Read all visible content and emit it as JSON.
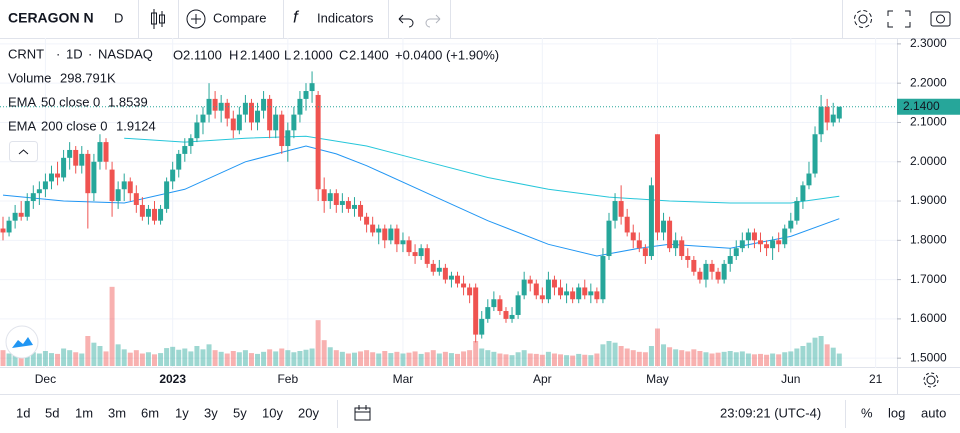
{
  "toolbar": {
    "symbol": "CERAGON N",
    "interval": "D",
    "compare": "Compare",
    "indicators": "Indicators"
  },
  "chart_data": {
    "type": "candlestick",
    "legend": {
      "symbol": "CRNT",
      "sep1": "·",
      "interval": "1D",
      "sep2": "·",
      "exchange": "NASDAQ",
      "o_label": "O",
      "o": "2.1100",
      "h_label": "H",
      "h": "2.1400",
      "l_label": "L",
      "l": "2.1000",
      "c_label": "C",
      "c": "2.1400",
      "change": "+0.0400 (+1.90%)",
      "volume_name": "Volume",
      "volume_value": "298.791K",
      "ema1_name": "EMA",
      "ema1_params": "50 close 0",
      "ema1_value": "1.8539",
      "ema2_name": "EMA",
      "ema2_params": "200 close 0",
      "ema2_value": "1.9124"
    },
    "last_price_label": "2.1400",
    "up_color": "#26a69a",
    "down_color": "#ef5350",
    "ylim": [
      1.475,
      2.315
    ],
    "yticks": [
      {
        "value": 1.5,
        "label": "1.5000"
      },
      {
        "value": 1.6,
        "label": "1.6000"
      },
      {
        "value": 1.7,
        "label": "1.7000"
      },
      {
        "value": 1.8,
        "label": "1.8000"
      },
      {
        "value": 1.9,
        "label": "1.9000"
      },
      {
        "value": 2.0,
        "label": "2.0000"
      },
      {
        "value": 2.1,
        "label": "2.1000"
      },
      {
        "value": 2.2,
        "label": "2.2000"
      },
      {
        "value": 2.3,
        "label": "2.3000"
      }
    ],
    "vlim": [
      0,
      2400
    ],
    "xticks": [
      {
        "index": 7,
        "label": "Dec"
      },
      {
        "index": 28,
        "label": "2023"
      },
      {
        "index": 47,
        "label": "Feb"
      },
      {
        "index": 66,
        "label": "Mar"
      },
      {
        "index": 89,
        "label": "Apr"
      },
      {
        "index": 108,
        "label": "May"
      },
      {
        "index": 130,
        "label": "Jun"
      },
      {
        "index": 144,
        "label": "21"
      }
    ],
    "candles": [
      [
        1.83,
        1.86,
        1.8,
        1.82,
        380
      ],
      [
        1.82,
        1.86,
        1.81,
        1.85,
        300
      ],
      [
        1.85,
        1.89,
        1.83,
        1.87,
        350
      ],
      [
        1.87,
        1.9,
        1.85,
        1.86,
        280
      ],
      [
        1.86,
        1.92,
        1.85,
        1.9,
        420
      ],
      [
        1.9,
        1.94,
        1.88,
        1.92,
        330
      ],
      [
        1.92,
        1.95,
        1.89,
        1.93,
        300
      ],
      [
        1.93,
        1.97,
        1.91,
        1.95,
        360
      ],
      [
        1.95,
        1.99,
        1.93,
        1.97,
        310
      ],
      [
        1.97,
        2.0,
        1.94,
        1.96,
        290
      ],
      [
        1.96,
        2.03,
        1.95,
        2.01,
        420
      ],
      [
        2.01,
        2.05,
        1.98,
        2.03,
        380
      ],
      [
        2.03,
        2.04,
        1.97,
        1.99,
        330
      ],
      [
        1.99,
        2.04,
        1.97,
        2.02,
        300
      ],
      [
        2.02,
        2.03,
        1.83,
        1.92,
        720
      ],
      [
        1.92,
        2.02,
        1.9,
        2.0,
        560
      ],
      [
        2.0,
        2.07,
        1.98,
        2.05,
        480
      ],
      [
        2.05,
        2.06,
        1.98,
        2.0,
        350
      ],
      [
        1.98,
        2.0,
        1.86,
        1.9,
        1900
      ],
      [
        1.9,
        1.95,
        1.88,
        1.93,
        520
      ],
      [
        1.93,
        1.97,
        1.9,
        1.95,
        400
      ],
      [
        1.95,
        1.96,
        1.9,
        1.92,
        320
      ],
      [
        1.92,
        1.94,
        1.87,
        1.89,
        380
      ],
      [
        1.89,
        1.91,
        1.85,
        1.86,
        300
      ],
      [
        1.86,
        1.89,
        1.84,
        1.88,
        330
      ],
      [
        1.88,
        1.9,
        1.84,
        1.85,
        280
      ],
      [
        1.85,
        1.89,
        1.84,
        1.88,
        310
      ],
      [
        1.88,
        1.96,
        1.87,
        1.95,
        430
      ],
      [
        1.95,
        2.0,
        1.93,
        1.98,
        460
      ],
      [
        1.98,
        2.03,
        1.96,
        2.02,
        390
      ],
      [
        2.02,
        2.06,
        2.0,
        2.04,
        420
      ],
      [
        2.04,
        2.07,
        2.02,
        2.06,
        350
      ],
      [
        2.06,
        2.12,
        2.05,
        2.1,
        480
      ],
      [
        2.1,
        2.14,
        2.07,
        2.12,
        400
      ],
      [
        2.12,
        2.2,
        2.1,
        2.16,
        520
      ],
      [
        2.16,
        2.18,
        2.11,
        2.13,
        380
      ],
      [
        2.13,
        2.17,
        2.1,
        2.15,
        340
      ],
      [
        2.15,
        2.16,
        2.09,
        2.11,
        300
      ],
      [
        2.11,
        2.13,
        2.06,
        2.08,
        360
      ],
      [
        2.08,
        2.14,
        2.07,
        2.12,
        330
      ],
      [
        2.12,
        2.17,
        2.1,
        2.15,
        380
      ],
      [
        2.15,
        2.16,
        2.08,
        2.1,
        310
      ],
      [
        2.1,
        2.15,
        2.08,
        2.13,
        290
      ],
      [
        2.13,
        2.18,
        2.11,
        2.16,
        340
      ],
      [
        2.16,
        2.17,
        2.06,
        2.08,
        400
      ],
      [
        2.08,
        2.14,
        2.06,
        2.12,
        350
      ],
      [
        2.12,
        2.13,
        2.02,
        2.04,
        420
      ],
      [
        2.04,
        2.1,
        2.0,
        2.08,
        380
      ],
      [
        2.08,
        2.14,
        2.06,
        2.12,
        330
      ],
      [
        2.12,
        2.18,
        2.1,
        2.16,
        360
      ],
      [
        2.16,
        2.2,
        2.13,
        2.18,
        390
      ],
      [
        2.18,
        2.23,
        2.15,
        2.2,
        420
      ],
      [
        2.17,
        2.18,
        1.9,
        1.93,
        1100
      ],
      [
        1.93,
        1.96,
        1.87,
        1.9,
        620
      ],
      [
        1.9,
        1.93,
        1.88,
        1.92,
        450
      ],
      [
        1.92,
        1.93,
        1.87,
        1.89,
        380
      ],
      [
        1.89,
        1.92,
        1.87,
        1.9,
        340
      ],
      [
        1.9,
        1.91,
        1.87,
        1.88,
        300
      ],
      [
        1.88,
        1.91,
        1.86,
        1.89,
        320
      ],
      [
        1.89,
        1.9,
        1.85,
        1.86,
        350
      ],
      [
        1.86,
        1.87,
        1.82,
        1.84,
        380
      ],
      [
        1.84,
        1.86,
        1.81,
        1.82,
        330
      ],
      [
        1.82,
        1.84,
        1.79,
        1.83,
        300
      ],
      [
        1.83,
        1.84,
        1.78,
        1.8,
        360
      ],
      [
        1.8,
        1.84,
        1.79,
        1.83,
        310
      ],
      [
        1.83,
        1.84,
        1.77,
        1.79,
        340
      ],
      [
        1.79,
        1.82,
        1.77,
        1.8,
        300
      ],
      [
        1.8,
        1.81,
        1.76,
        1.77,
        320
      ],
      [
        1.77,
        1.79,
        1.74,
        1.76,
        350
      ],
      [
        1.76,
        1.79,
        1.75,
        1.78,
        290
      ],
      [
        1.78,
        1.79,
        1.73,
        1.74,
        330
      ],
      [
        1.74,
        1.75,
        1.71,
        1.72,
        380
      ],
      [
        1.72,
        1.75,
        1.71,
        1.73,
        300
      ],
      [
        1.73,
        1.74,
        1.69,
        1.7,
        340
      ],
      [
        1.7,
        1.72,
        1.68,
        1.71,
        310
      ],
      [
        1.71,
        1.72,
        1.68,
        1.69,
        290
      ],
      [
        1.69,
        1.71,
        1.66,
        1.68,
        350
      ],
      [
        1.68,
        1.69,
        1.64,
        1.66,
        380
      ],
      [
        1.68,
        1.69,
        1.54,
        1.56,
        600
      ],
      [
        1.56,
        1.62,
        1.55,
        1.6,
        420
      ],
      [
        1.6,
        1.65,
        1.59,
        1.63,
        380
      ],
      [
        1.63,
        1.67,
        1.62,
        1.65,
        340
      ],
      [
        1.65,
        1.66,
        1.61,
        1.62,
        300
      ],
      [
        1.62,
        1.63,
        1.59,
        1.6,
        280
      ],
      [
        1.6,
        1.63,
        1.59,
        1.61,
        260
      ],
      [
        1.61,
        1.67,
        1.6,
        1.66,
        330
      ],
      [
        1.66,
        1.72,
        1.65,
        1.7,
        380
      ],
      [
        1.7,
        1.71,
        1.67,
        1.69,
        300
      ],
      [
        1.69,
        1.7,
        1.65,
        1.66,
        290
      ],
      [
        1.66,
        1.68,
        1.64,
        1.65,
        270
      ],
      [
        1.65,
        1.72,
        1.64,
        1.7,
        340
      ],
      [
        1.7,
        1.71,
        1.66,
        1.68,
        300
      ],
      [
        1.68,
        1.7,
        1.65,
        1.66,
        280
      ],
      [
        1.66,
        1.69,
        1.64,
        1.67,
        260
      ],
      [
        1.67,
        1.68,
        1.64,
        1.65,
        250
      ],
      [
        1.65,
        1.69,
        1.64,
        1.68,
        290
      ],
      [
        1.68,
        1.7,
        1.65,
        1.66,
        270
      ],
      [
        1.66,
        1.69,
        1.64,
        1.67,
        260
      ],
      [
        1.67,
        1.68,
        1.64,
        1.65,
        300
      ],
      [
        1.65,
        1.78,
        1.64,
        1.76,
        520
      ],
      [
        1.76,
        1.87,
        1.75,
        1.85,
        600
      ],
      [
        1.85,
        1.92,
        1.83,
        1.9,
        560
      ],
      [
        1.9,
        1.94,
        1.84,
        1.86,
        480
      ],
      [
        1.86,
        1.88,
        1.81,
        1.82,
        420
      ],
      [
        1.82,
        1.84,
        1.78,
        1.8,
        380
      ],
      [
        1.8,
        1.82,
        1.77,
        1.78,
        340
      ],
      [
        1.78,
        1.79,
        1.74,
        1.76,
        330
      ],
      [
        1.76,
        1.96,
        1.75,
        1.94,
        480
      ],
      [
        2.07,
        2.07,
        1.8,
        1.82,
        900
      ],
      [
        1.82,
        1.87,
        1.8,
        1.85,
        520
      ],
      [
        1.85,
        1.86,
        1.77,
        1.78,
        450
      ],
      [
        1.78,
        1.82,
        1.76,
        1.8,
        400
      ],
      [
        1.8,
        1.81,
        1.75,
        1.76,
        380
      ],
      [
        1.76,
        1.78,
        1.73,
        1.75,
        350
      ],
      [
        1.75,
        1.76,
        1.71,
        1.72,
        400
      ],
      [
        1.72,
        1.73,
        1.69,
        1.7,
        360
      ],
      [
        1.7,
        1.75,
        1.68,
        1.74,
        330
      ],
      [
        1.74,
        1.75,
        1.7,
        1.72,
        300
      ],
      [
        1.72,
        1.73,
        1.69,
        1.7,
        320
      ],
      [
        1.7,
        1.75,
        1.69,
        1.74,
        340
      ],
      [
        1.74,
        1.78,
        1.72,
        1.76,
        360
      ],
      [
        1.76,
        1.8,
        1.75,
        1.78,
        330
      ],
      [
        1.78,
        1.82,
        1.77,
        1.8,
        350
      ],
      [
        1.8,
        1.83,
        1.78,
        1.82,
        300
      ],
      [
        1.82,
        1.83,
        1.78,
        1.8,
        280
      ],
      [
        1.8,
        1.82,
        1.77,
        1.79,
        290
      ],
      [
        1.79,
        1.8,
        1.76,
        1.78,
        270
      ],
      [
        1.78,
        1.81,
        1.75,
        1.8,
        300
      ],
      [
        1.8,
        1.82,
        1.77,
        1.79,
        280
      ],
      [
        1.79,
        1.84,
        1.78,
        1.83,
        330
      ],
      [
        1.83,
        1.87,
        1.82,
        1.85,
        350
      ],
      [
        1.85,
        1.91,
        1.84,
        1.9,
        420
      ],
      [
        1.9,
        1.95,
        1.88,
        1.94,
        480
      ],
      [
        1.94,
        2.0,
        1.93,
        1.97,
        560
      ],
      [
        1.97,
        2.09,
        1.96,
        2.07,
        680
      ],
      [
        2.07,
        2.17,
        2.05,
        2.14,
        720
      ],
      [
        2.14,
        2.16,
        2.08,
        2.1,
        520
      ],
      [
        2.1,
        2.15,
        2.09,
        2.12,
        440
      ],
      [
        2.11,
        2.14,
        2.1,
        2.14,
        298.791
      ]
    ],
    "lines": [
      {
        "name": "EMA 50",
        "color": "#2196f3",
        "x": [
          0,
          10,
          20,
          30,
          40,
          50,
          55,
          60,
          70,
          80,
          90,
          98,
          105,
          110,
          120,
          130,
          138
        ],
        "values": [
          1.915,
          1.9,
          1.895,
          1.93,
          2.0,
          2.04,
          2.02,
          1.99,
          1.92,
          1.85,
          1.79,
          1.76,
          1.78,
          1.79,
          1.78,
          1.81,
          1.855
        ]
      },
      {
        "name": "EMA 200",
        "color": "#26c6da",
        "x": [
          20,
          30,
          40,
          50,
          60,
          70,
          80,
          90,
          100,
          110,
          120,
          130,
          138
        ],
        "values": [
          2.06,
          2.05,
          2.06,
          2.065,
          2.04,
          2.0,
          1.96,
          1.93,
          1.91,
          1.9,
          1.895,
          1.895,
          1.912
        ]
      }
    ]
  },
  "bottom_bar": {
    "ranges": [
      "1d",
      "5d",
      "1m",
      "3m",
      "6m",
      "1y",
      "3y",
      "5y",
      "10y",
      "20y"
    ],
    "time": "23:09:21 (UTC-4)",
    "percent": "%",
    "log": "log",
    "auto": "auto"
  }
}
